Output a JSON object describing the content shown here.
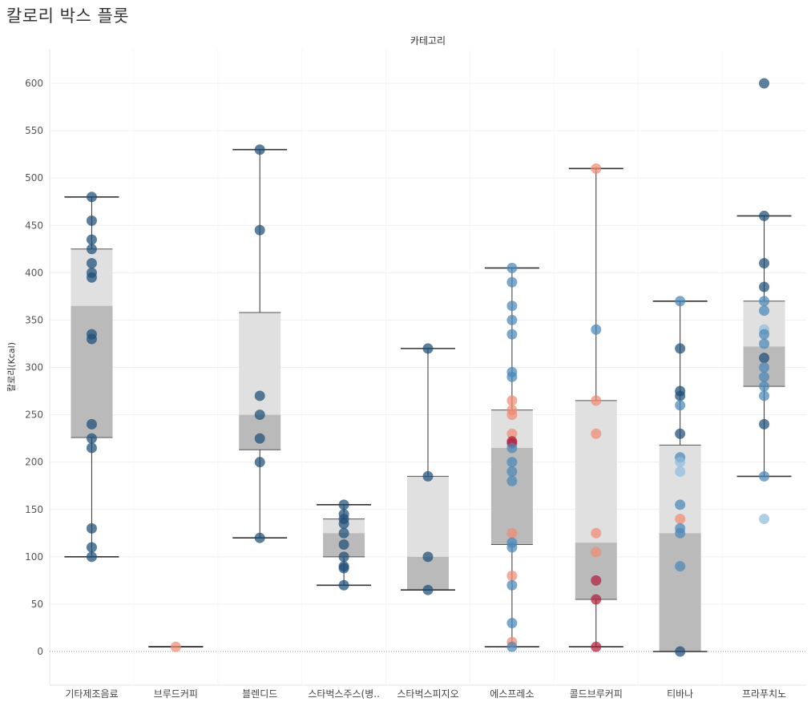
{
  "title": "칼로리 박스 플롯",
  "chart_data": {
    "type": "box",
    "column_header": "카테고리",
    "ylabel": "칼로리(Kcal)",
    "ylim": [
      -35,
      640
    ],
    "yticks": [
      0,
      50,
      100,
      150,
      200,
      250,
      300,
      350,
      400,
      450,
      500,
      550,
      600
    ],
    "grid": true,
    "colors": {
      "box_upper": "#e0e0e0",
      "box_lower": "#bababa",
      "whisker": "#333333",
      "dark_blue": "#1f4e79",
      "mid_blue": "#4a86b8",
      "light_blue": "#8fbcdc",
      "salmon": "#f08a72",
      "crimson": "#b21f3a"
    },
    "categories": [
      {
        "name": "기타제조음료",
        "box": {
          "min": 100,
          "q1": 226,
          "median": 365,
          "q3": 425,
          "max": 480
        },
        "points": [
          {
            "y": 480,
            "c": "dark_blue"
          },
          {
            "y": 455,
            "c": "dark_blue"
          },
          {
            "y": 435,
            "c": "dark_blue"
          },
          {
            "y": 425,
            "c": "dark_blue"
          },
          {
            "y": 410,
            "c": "dark_blue"
          },
          {
            "y": 400,
            "c": "dark_blue"
          },
          {
            "y": 395,
            "c": "dark_blue"
          },
          {
            "y": 335,
            "c": "dark_blue"
          },
          {
            "y": 330,
            "c": "dark_blue"
          },
          {
            "y": 240,
            "c": "dark_blue"
          },
          {
            "y": 225,
            "c": "dark_blue"
          },
          {
            "y": 215,
            "c": "dark_blue"
          },
          {
            "y": 130,
            "c": "dark_blue"
          },
          {
            "y": 110,
            "c": "dark_blue"
          },
          {
            "y": 100,
            "c": "dark_blue"
          }
        ]
      },
      {
        "name": "브루드커피",
        "box": {
          "min": 5,
          "q1": 5,
          "median": 5,
          "q3": 5,
          "max": 5
        },
        "points": [
          {
            "y": 5,
            "c": "salmon"
          }
        ]
      },
      {
        "name": "블렌디드",
        "box": {
          "min": 120,
          "q1": 213,
          "median": 250,
          "q3": 358,
          "max": 530
        },
        "points": [
          {
            "y": 530,
            "c": "dark_blue"
          },
          {
            "y": 445,
            "c": "dark_blue"
          },
          {
            "y": 270,
            "c": "dark_blue"
          },
          {
            "y": 250,
            "c": "dark_blue"
          },
          {
            "y": 225,
            "c": "dark_blue"
          },
          {
            "y": 200,
            "c": "dark_blue"
          },
          {
            "y": 120,
            "c": "dark_blue"
          }
        ]
      },
      {
        "name": "스타벅스주스(병..",
        "box": {
          "min": 70,
          "q1": 100,
          "median": 125,
          "q3": 140,
          "max": 155
        },
        "points": [
          {
            "y": 155,
            "c": "dark_blue"
          },
          {
            "y": 145,
            "c": "dark_blue"
          },
          {
            "y": 140,
            "c": "dark_blue"
          },
          {
            "y": 135,
            "c": "dark_blue"
          },
          {
            "y": 125,
            "c": "dark_blue"
          },
          {
            "y": 113,
            "c": "dark_blue"
          },
          {
            "y": 100,
            "c": "dark_blue"
          },
          {
            "y": 90,
            "c": "dark_blue"
          },
          {
            "y": 88,
            "c": "dark_blue"
          },
          {
            "y": 70,
            "c": "dark_blue"
          }
        ]
      },
      {
        "name": "스타벅스피지오",
        "box": {
          "min": 65,
          "q1": 65,
          "median": 100,
          "q3": 185,
          "max": 320
        },
        "points": [
          {
            "y": 320,
            "c": "dark_blue"
          },
          {
            "y": 185,
            "c": "dark_blue"
          },
          {
            "y": 100,
            "c": "dark_blue"
          },
          {
            "y": 65,
            "c": "dark_blue"
          }
        ]
      },
      {
        "name": "에스프레소",
        "box": {
          "min": 5,
          "q1": 113,
          "median": 215,
          "q3": 255,
          "max": 405
        },
        "points": [
          {
            "y": 405,
            "c": "mid_blue"
          },
          {
            "y": 390,
            "c": "mid_blue"
          },
          {
            "y": 365,
            "c": "mid_blue"
          },
          {
            "y": 350,
            "c": "mid_blue"
          },
          {
            "y": 335,
            "c": "mid_blue"
          },
          {
            "y": 295,
            "c": "mid_blue"
          },
          {
            "y": 290,
            "c": "mid_blue"
          },
          {
            "y": 265,
            "c": "salmon"
          },
          {
            "y": 255,
            "c": "salmon"
          },
          {
            "y": 250,
            "c": "salmon"
          },
          {
            "y": 230,
            "c": "salmon"
          },
          {
            "y": 222,
            "c": "crimson"
          },
          {
            "y": 220,
            "c": "crimson"
          },
          {
            "y": 215,
            "c": "mid_blue"
          },
          {
            "y": 200,
            "c": "mid_blue"
          },
          {
            "y": 190,
            "c": "mid_blue"
          },
          {
            "y": 180,
            "c": "mid_blue"
          },
          {
            "y": 125,
            "c": "salmon"
          },
          {
            "y": 115,
            "c": "mid_blue"
          },
          {
            "y": 110,
            "c": "mid_blue"
          },
          {
            "y": 80,
            "c": "salmon"
          },
          {
            "y": 70,
            "c": "mid_blue"
          },
          {
            "y": 30,
            "c": "mid_blue"
          },
          {
            "y": 10,
            "c": "salmon"
          },
          {
            "y": 5,
            "c": "mid_blue"
          }
        ]
      },
      {
        "name": "콜드브루커피",
        "box": {
          "min": 5,
          "q1": 55,
          "median": 115,
          "q3": 265,
          "max": 510
        },
        "points": [
          {
            "y": 510,
            "c": "salmon"
          },
          {
            "y": 340,
            "c": "mid_blue"
          },
          {
            "y": 265,
            "c": "salmon"
          },
          {
            "y": 230,
            "c": "salmon"
          },
          {
            "y": 125,
            "c": "salmon"
          },
          {
            "y": 105,
            "c": "salmon"
          },
          {
            "y": 75,
            "c": "crimson"
          },
          {
            "y": 55,
            "c": "crimson"
          },
          {
            "y": 5,
            "c": "crimson"
          }
        ]
      },
      {
        "name": "티바나",
        "box": {
          "min": 0,
          "q1": 0,
          "median": 125,
          "q3": 218,
          "max": 370
        },
        "points": [
          {
            "y": 370,
            "c": "mid_blue"
          },
          {
            "y": 320,
            "c": "dark_blue"
          },
          {
            "y": 275,
            "c": "dark_blue"
          },
          {
            "y": 270,
            "c": "dark_blue"
          },
          {
            "y": 260,
            "c": "mid_blue"
          },
          {
            "y": 230,
            "c": "dark_blue"
          },
          {
            "y": 205,
            "c": "mid_blue"
          },
          {
            "y": 200,
            "c": "light_blue"
          },
          {
            "y": 190,
            "c": "light_blue"
          },
          {
            "y": 155,
            "c": "mid_blue"
          },
          {
            "y": 140,
            "c": "salmon"
          },
          {
            "y": 130,
            "c": "mid_blue"
          },
          {
            "y": 125,
            "c": "mid_blue"
          },
          {
            "y": 90,
            "c": "mid_blue"
          },
          {
            "y": 0,
            "c": "dark_blue"
          }
        ]
      },
      {
        "name": "프라푸치노",
        "box": {
          "min": 185,
          "q1": 280,
          "median": 322,
          "q3": 370,
          "max": 460
        },
        "points": [
          {
            "y": 600,
            "c": "dark_blue"
          },
          {
            "y": 460,
            "c": "dark_blue"
          },
          {
            "y": 410,
            "c": "dark_blue"
          },
          {
            "y": 385,
            "c": "dark_blue"
          },
          {
            "y": 370,
            "c": "mid_blue"
          },
          {
            "y": 360,
            "c": "mid_blue"
          },
          {
            "y": 340,
            "c": "light_blue"
          },
          {
            "y": 335,
            "c": "mid_blue"
          },
          {
            "y": 325,
            "c": "mid_blue"
          },
          {
            "y": 310,
            "c": "dark_blue"
          },
          {
            "y": 300,
            "c": "mid_blue"
          },
          {
            "y": 290,
            "c": "mid_blue"
          },
          {
            "y": 280,
            "c": "mid_blue"
          },
          {
            "y": 270,
            "c": "mid_blue"
          },
          {
            "y": 240,
            "c": "dark_blue"
          },
          {
            "y": 185,
            "c": "mid_blue"
          },
          {
            "y": 140,
            "c": "light_blue"
          }
        ]
      }
    ]
  }
}
